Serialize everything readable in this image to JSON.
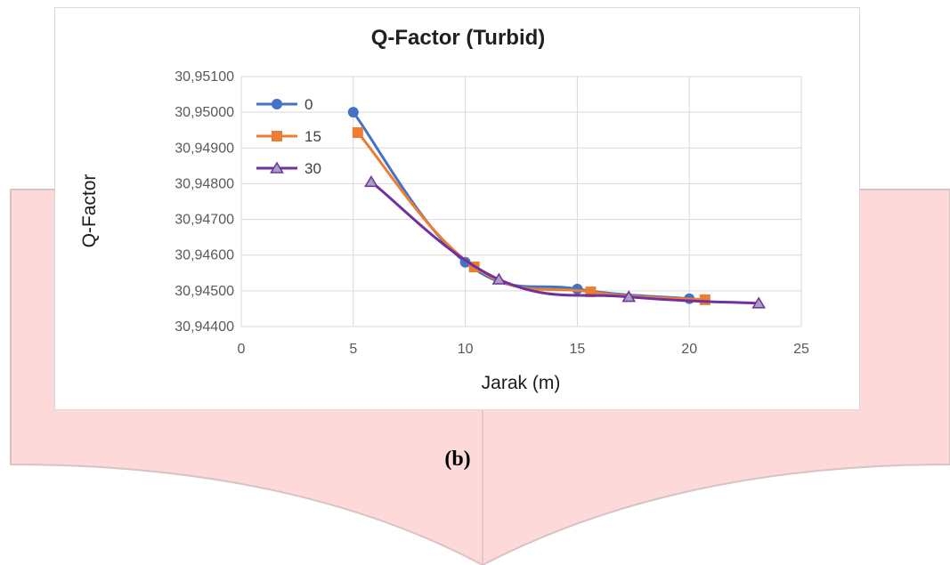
{
  "figure_caption": "(b)",
  "colors": {
    "backdrop_fill": "#fdd9da",
    "backdrop_stroke": "#d8c3c3",
    "grid": "#d9d9d9"
  },
  "chart_data": {
    "type": "line",
    "title": "Q-Factor (Turbid)",
    "xlabel": "Jarak (m)",
    "ylabel": "Q-Factor",
    "xlim": [
      0,
      25
    ],
    "ylim": [
      30.944,
      30.951
    ],
    "x_ticks": [
      0,
      5,
      10,
      15,
      20,
      25
    ],
    "y_ticks": [
      "30,94400",
      "30,94500",
      "30,94600",
      "30,94700",
      "30,94800",
      "30,94900",
      "30,95000",
      "30,95100"
    ],
    "y_tick_values": [
      30.944,
      30.945,
      30.946,
      30.947,
      30.948,
      30.949,
      30.95,
      30.951
    ],
    "grid": "both",
    "legend_position": "top-left",
    "series": [
      {
        "name": "0",
        "color": "#4472c4",
        "marker": "circle",
        "x": [
          5,
          10,
          15,
          20
        ],
        "y": [
          30.95,
          30.9458,
          30.94505,
          30.94478
        ]
      },
      {
        "name": "15",
        "color": "#ed7d31",
        "marker": "square",
        "x": [
          5.2,
          10.4,
          15.6,
          20.7
        ],
        "y": [
          30.94943,
          30.94567,
          30.94497,
          30.94475
        ]
      },
      {
        "name": "30",
        "color": "#7030a0",
        "marker": "triangle",
        "x": [
          5.8,
          11.5,
          17.3,
          23.1
        ],
        "y": [
          30.94805,
          30.94532,
          30.94483,
          30.94465
        ]
      }
    ]
  }
}
